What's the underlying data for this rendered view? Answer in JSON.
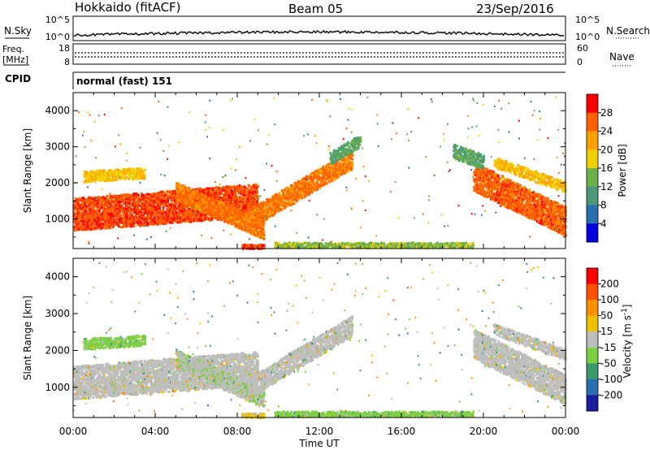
{
  "header": {
    "radar": "Hokkaido (fitACF)",
    "beam": "Beam 05",
    "date": "23/Sep/2016"
  },
  "noise_panel": {
    "left_label": "N.Sky",
    "right_label": "N.Search",
    "left_ticks": [
      "10^5",
      "10^0"
    ],
    "right_ticks": [
      "10^5",
      "10^0"
    ]
  },
  "freq_panel": {
    "left_label_1": "Freq.",
    "left_label_2": "[MHz]",
    "right_label": "Nave",
    "left_ticks": [
      "18",
      "8"
    ],
    "right_ticks": [
      "60",
      "0"
    ]
  },
  "cpid_panel": {
    "label": "CPID",
    "mode": "normal (fast) 151"
  },
  "x_axis": {
    "label": "Time UT",
    "ticks": [
      "00:00",
      "04:00",
      "08:00",
      "12:00",
      "16:00",
      "20:00",
      "00:00"
    ]
  },
  "colors": {
    "power_scale": [
      "#0000e0",
      "#2a6fb0",
      "#4a9a7a",
      "#6bb04a",
      "#f0d000",
      "#ffa000",
      "#ff6000",
      "#ff0000"
    ],
    "velocity_scale": [
      "#1c1ca0",
      "#2a6fb0",
      "#3a9a6a",
      "#7ad040",
      "#bebebe",
      "#f0c000",
      "#ff9000",
      "#ff5000",
      "#ff0000"
    ]
  },
  "chart_data": [
    {
      "type": "heatmap",
      "title": "",
      "xlabel": "Time UT",
      "ylabel": "Slant Range [km]",
      "xlim": [
        0,
        24
      ],
      "ylim": [
        180,
        4500
      ],
      "yticks": [
        1000,
        2000,
        3000,
        4000
      ],
      "colorbar": {
        "label": "Power [dB]",
        "ticks": [
          28,
          24,
          20,
          16,
          12,
          8,
          4
        ],
        "range": [
          0,
          32
        ]
      },
      "echo_regions": [
        {
          "t0": 0.0,
          "t1": 9.0,
          "r_start": 1150,
          "r_end": 1550,
          "thickness": 900,
          "value": 27
        },
        {
          "t0": 5.0,
          "t1": 9.3,
          "r_start": 1800,
          "r_end": 700,
          "thickness": 500,
          "value": 25
        },
        {
          "t0": 8.5,
          "t1": 13.6,
          "r_start": 1000,
          "r_end": 2700,
          "thickness": 550,
          "value": 25
        },
        {
          "t0": 12.5,
          "t1": 14.0,
          "r_start": 2700,
          "r_end": 3200,
          "thickness": 350,
          "value": 12
        },
        {
          "t0": 0.5,
          "t1": 3.5,
          "r_start": 2200,
          "r_end": 2300,
          "thickness": 300,
          "value": 19
        },
        {
          "t0": 19.5,
          "t1": 24.0,
          "r_start": 2200,
          "r_end": 950,
          "thickness": 800,
          "value": 26
        },
        {
          "t0": 18.5,
          "t1": 20.0,
          "r_start": 2900,
          "r_end": 2600,
          "thickness": 400,
          "value": 12
        },
        {
          "t0": 20.5,
          "t1": 24.0,
          "r_start": 2600,
          "r_end": 1900,
          "thickness": 300,
          "value": 20
        },
        {
          "t0": 9.8,
          "t1": 19.5,
          "r_start": 300,
          "r_end": 300,
          "thickness": 140,
          "value": 15
        },
        {
          "t0": 8.2,
          "t1": 9.3,
          "r_start": 260,
          "r_end": 260,
          "thickness": 120,
          "value": 27
        }
      ]
    },
    {
      "type": "heatmap",
      "title": "",
      "xlabel": "Time UT",
      "ylabel": "Slant Range [km]",
      "xlim": [
        0,
        24
      ],
      "ylim": [
        180,
        4500
      ],
      "yticks": [
        1000,
        2000,
        3000,
        4000
      ],
      "colorbar": {
        "label": "Velocity [m s^-1]",
        "ticks": [
          200,
          100,
          50,
          15,
          -15,
          -50,
          -100,
          -200
        ],
        "range": [
          -250,
          250
        ]
      },
      "echo_regions": [
        {
          "t0": 0.0,
          "t1": 9.0,
          "r_start": 1150,
          "r_end": 1550,
          "thickness": 900,
          "value": 0
        },
        {
          "t0": 5.0,
          "t1": 9.3,
          "r_start": 1800,
          "r_end": 700,
          "thickness": 500,
          "value": -20
        },
        {
          "t0": 8.5,
          "t1": 13.6,
          "r_start": 1000,
          "r_end": 2700,
          "thickness": 550,
          "value": 0
        },
        {
          "t0": 0.5,
          "t1": 3.5,
          "r_start": 2200,
          "r_end": 2300,
          "thickness": 300,
          "value": -40
        },
        {
          "t0": 19.5,
          "t1": 24.0,
          "r_start": 2200,
          "r_end": 950,
          "thickness": 800,
          "value": 0
        },
        {
          "t0": 20.5,
          "t1": 24.0,
          "r_start": 2600,
          "r_end": 1900,
          "thickness": 300,
          "value": 0
        },
        {
          "t0": 9.8,
          "t1": 19.5,
          "r_start": 300,
          "r_end": 300,
          "thickness": 140,
          "value": -40
        },
        {
          "t0": 8.2,
          "t1": 9.3,
          "r_start": 260,
          "r_end": 260,
          "thickness": 120,
          "value": 30
        }
      ]
    }
  ]
}
